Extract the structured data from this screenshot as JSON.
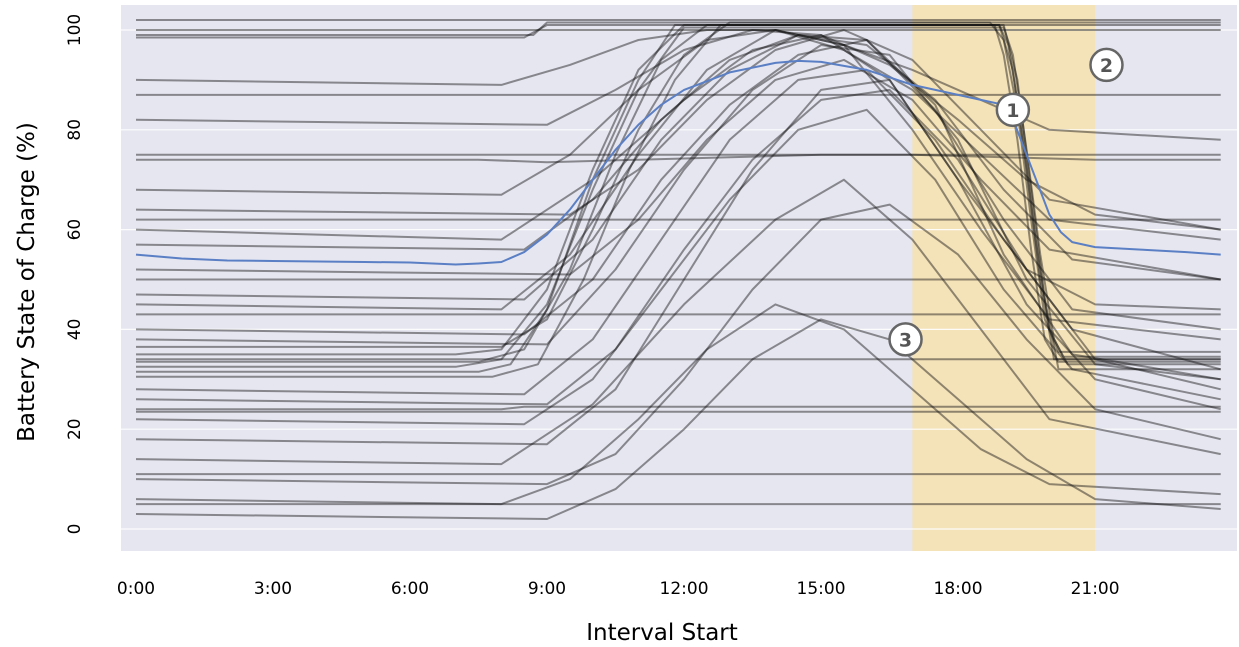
{
  "chart_data": {
    "type": "line",
    "title": "",
    "xlabel": "Interval Start",
    "ylabel": "Battery State of Charge (%)",
    "xlim": [
      0,
      23.75
    ],
    "ylim": [
      -5,
      105
    ],
    "x_ticks": [
      {
        "value": 0,
        "label": "0:00"
      },
      {
        "value": 3,
        "label": "3:00"
      },
      {
        "value": 6,
        "label": "6:00"
      },
      {
        "value": 9,
        "label": "9:00"
      },
      {
        "value": 12,
        "label": "12:00"
      },
      {
        "value": 15,
        "label": "15:00"
      },
      {
        "value": 18,
        "label": "18:00"
      },
      {
        "value": 21,
        "label": "21:00"
      }
    ],
    "y_ticks": [
      {
        "value": 0,
        "label": "0"
      },
      {
        "value": 20,
        "label": "20"
      },
      {
        "value": 40,
        "label": "40"
      },
      {
        "value": 60,
        "label": "60"
      },
      {
        "value": 80,
        "label": "80"
      },
      {
        "value": 100,
        "label": "100"
      }
    ],
    "grid": true,
    "colors": {
      "plot_background": "#e5e6f0",
      "grid": "#ffffff",
      "trace": "#111111",
      "mean_line": "#5b7fc4",
      "highlight": "#f4e2b8"
    },
    "highlight_band": {
      "x_start": 17,
      "x_end": 21
    },
    "mean_series": {
      "x": [
        0,
        1,
        2,
        3,
        4,
        5,
        6,
        7,
        7.5,
        8,
        8.5,
        9,
        9.5,
        10,
        10.5,
        11,
        11.5,
        12,
        13,
        14,
        14.5,
        15,
        16,
        17,
        18,
        18.5,
        19,
        19.25,
        19.5,
        19.75,
        20,
        20.25,
        20.5,
        21,
        22,
        23,
        23.75
      ],
      "y": [
        55,
        54.2,
        53.8,
        53.7,
        53.6,
        53.5,
        53.4,
        53.0,
        53.2,
        53.5,
        55.5,
        59,
        64,
        70,
        76,
        81,
        85,
        88,
        91.5,
        93.4,
        93.8,
        93.6,
        92,
        89,
        87,
        86,
        85,
        81,
        75,
        69,
        63,
        59.5,
        57.5,
        56.5,
        56,
        55.5,
        55
      ]
    },
    "traces": [
      {
        "x": [
          0,
          7,
          8,
          9,
          10,
          11,
          12,
          18.9,
          19.1,
          19.4,
          19.7,
          20,
          20.3,
          23.75
        ],
        "y": [
          35,
          35,
          36,
          48,
          72,
          92,
          101,
          101,
          97,
          80,
          58,
          40,
          34.5,
          34.5
        ]
      },
      {
        "x": [
          0,
          7.5,
          8.5,
          9.5,
          10.5,
          11.5,
          12.5,
          18.8,
          19,
          19.3,
          19.6,
          19.9,
          20.2,
          23.75
        ],
        "y": [
          33.5,
          33.5,
          36,
          52,
          75,
          94,
          101,
          101,
          95,
          78,
          56,
          38,
          33.5,
          33.5
        ]
      },
      {
        "x": [
          0,
          7,
          8,
          9,
          10,
          11,
          12,
          19,
          19.2,
          19.5,
          19.8,
          20.1,
          20.4,
          23.75
        ],
        "y": [
          32.5,
          32.5,
          34,
          45,
          68,
          88,
          100.5,
          100.5,
          95,
          76,
          55,
          38,
          33,
          33
        ]
      },
      {
        "x": [
          0,
          7.5,
          8.2,
          9,
          10,
          11,
          11.8,
          18.9,
          19.2,
          19.5,
          19.8,
          20.1,
          23.75
        ],
        "y": [
          31.5,
          31.5,
          33,
          44,
          70,
          90,
          101,
          101,
          92,
          72,
          50,
          34,
          34
        ]
      },
      {
        "x": [
          0,
          8,
          9,
          10,
          11,
          12,
          13,
          18.7,
          19,
          19.3,
          19.6,
          19.9,
          20.2,
          23.75
        ],
        "y": [
          36.5,
          36.5,
          42,
          60,
          80,
          95,
          101.5,
          101.5,
          98,
          84,
          62,
          42,
          35.5,
          35.5
        ]
      },
      {
        "x": [
          0,
          7.8,
          8.8,
          9.8,
          10.8,
          11.8,
          12.8,
          19,
          19.3,
          19.6,
          19.9,
          20.2,
          23.75
        ],
        "y": [
          30.5,
          30.5,
          33,
          50,
          72,
          90,
          101,
          101,
          90,
          68,
          46,
          32,
          32
        ]
      },
      {
        "x": [
          0,
          8.7,
          9,
          23.75
        ],
        "y": [
          99,
          99,
          101.5,
          101.5
        ]
      },
      {
        "x": [
          0,
          8.5,
          9,
          23.75
        ],
        "y": [
          98.5,
          98.5,
          101,
          101
        ]
      },
      {
        "x": [
          0,
          23.75
        ],
        "y": [
          102,
          102
        ]
      },
      {
        "x": [
          0,
          23.75
        ],
        "y": [
          100,
          100
        ]
      },
      {
        "x": [
          0,
          7.5,
          9,
          11,
          13,
          15,
          17,
          19,
          21,
          23.75
        ],
        "y": [
          74,
          74,
          73.5,
          74,
          74.5,
          75,
          75,
          74.5,
          74,
          74
        ]
      },
      {
        "x": [
          0,
          8,
          8.5,
          23.75
        ],
        "y": [
          24,
          24,
          24.5,
          24.5
        ]
      },
      {
        "x": [
          0,
          23.75
        ],
        "y": [
          23.5,
          23.5
        ]
      },
      {
        "x": [
          0,
          23.75
        ],
        "y": [
          34,
          34
        ]
      },
      {
        "x": [
          0,
          23.75
        ],
        "y": [
          75,
          75
        ]
      },
      {
        "x": [
          0,
          23.75
        ],
        "y": [
          50,
          50
        ]
      },
      {
        "x": [
          0,
          23.75
        ],
        "y": [
          62,
          62
        ]
      },
      {
        "x": [
          0,
          23.75
        ],
        "y": [
          87,
          87
        ]
      },
      {
        "x": [
          0,
          23.75
        ],
        "y": [
          43,
          43
        ]
      },
      {
        "x": [
          0,
          23.75
        ],
        "y": [
          11,
          11
        ]
      },
      {
        "x": [
          0,
          23.75
        ],
        "y": [
          5,
          5
        ]
      },
      {
        "x": [
          0,
          8,
          10,
          12,
          13.5,
          15,
          16.5,
          18,
          19.5,
          21,
          23.75
        ],
        "y": [
          60,
          58,
          70,
          86,
          96,
          99,
          90,
          70,
          52,
          45,
          44
        ]
      },
      {
        "x": [
          0,
          8,
          9.5,
          11,
          12.5,
          14,
          15.5,
          17,
          18.5,
          20,
          23.75
        ],
        "y": [
          45,
          44,
          55,
          75,
          92,
          100,
          97,
          80,
          60,
          42,
          38
        ]
      },
      {
        "x": [
          0,
          9,
          10.5,
          12,
          13.5,
          15,
          16.5,
          18,
          19.5,
          21,
          23.75
        ],
        "y": [
          18,
          17,
          28,
          50,
          72,
          88,
          90,
          70,
          45,
          30,
          24
        ]
      },
      {
        "x": [
          0,
          8.5,
          10,
          11.5,
          13,
          14.5,
          16,
          17.5,
          19,
          20.5,
          23.75
        ],
        "y": [
          40,
          39,
          50,
          70,
          85,
          95,
          98,
          85,
          55,
          35,
          30
        ]
      },
      {
        "x": [
          0,
          9,
          10.5,
          12,
          13.5,
          15,
          16.5,
          18,
          19.5,
          21,
          23.75
        ],
        "y": [
          10,
          9,
          15,
          30,
          48,
          62,
          65,
          55,
          38,
          24,
          18
        ]
      },
      {
        "x": [
          0,
          8,
          9.5,
          11,
          12.5,
          14,
          15.5,
          17,
          18.5,
          20,
          23.75
        ],
        "y": [
          68,
          67,
          75,
          88,
          98,
          100,
          96,
          88,
          75,
          62,
          58
        ]
      },
      {
        "x": [
          0,
          8.5,
          10,
          11.5,
          13,
          14.5,
          16,
          17.5,
          19,
          20.5,
          23.75
        ],
        "y": [
          28,
          27,
          38,
          58,
          78,
          90,
          92,
          78,
          58,
          40,
          32
        ]
      },
      {
        "x": [
          0,
          9.5,
          11,
          12.5,
          14,
          15.5,
          17,
          18.5,
          20,
          23.75
        ],
        "y": [
          52,
          51,
          62,
          78,
          90,
          94,
          86,
          70,
          56,
          50
        ]
      },
      {
        "x": [
          0,
          8,
          9.5,
          11,
          12.5,
          14,
          15.5,
          17,
          18.5,
          20,
          23.75
        ],
        "y": [
          6,
          5,
          10,
          22,
          36,
          45,
          40,
          28,
          16,
          9,
          7
        ]
      },
      {
        "x": [
          0,
          9,
          10.5,
          12,
          13.5,
          15,
          16.5,
          18,
          19.5,
          21,
          23.75
        ],
        "y": [
          82,
          81,
          88,
          96,
          100,
          99,
          93,
          82,
          70,
          63,
          60
        ]
      },
      {
        "x": [
          0,
          8.5,
          10,
          11.5,
          13,
          14.5,
          16,
          17.5,
          19,
          20.5,
          23.75
        ],
        "y": [
          22,
          21,
          30,
          48,
          66,
          80,
          84,
          70,
          48,
          32,
          26
        ]
      },
      {
        "x": [
          0,
          9,
          10.5,
          12,
          13.5,
          15,
          16.5,
          18,
          19.5,
          21,
          23.75
        ],
        "y": [
          38,
          37,
          52,
          72,
          88,
          97,
          95,
          78,
          50,
          33,
          30
        ]
      },
      {
        "x": [
          0,
          8,
          10,
          12,
          14,
          15.5,
          17,
          18.5,
          20,
          23.75
        ],
        "y": [
          14,
          13,
          25,
          45,
          62,
          70,
          58,
          40,
          22,
          15
        ]
      },
      {
        "x": [
          0,
          9.5,
          11,
          12.5,
          14,
          15.5,
          17,
          18.5,
          20,
          23.75
        ],
        "y": [
          64,
          63,
          72,
          86,
          96,
          100,
          94,
          80,
          66,
          60
        ]
      },
      {
        "x": [
          0,
          8.5,
          10,
          11.5,
          13,
          14.5,
          16,
          17.5,
          19,
          20.5,
          23.75
        ],
        "y": [
          47,
          46,
          58,
          78,
          92,
          99,
          98,
          84,
          62,
          44,
          40
        ]
      },
      {
        "x": [
          0,
          9,
          10.5,
          12,
          13.5,
          15,
          16.5,
          18,
          19.5,
          21,
          23.75
        ],
        "y": [
          3,
          2,
          8,
          20,
          34,
          42,
          38,
          26,
          14,
          6,
          4
        ]
      },
      {
        "x": [
          0,
          8,
          9.5,
          11,
          12.5,
          14,
          15.5,
          17,
          18.5,
          20,
          23.75
        ],
        "y": [
          90,
          89,
          93,
          98,
          100,
          100,
          97,
          92,
          86,
          80,
          78
        ]
      },
      {
        "x": [
          0,
          9,
          10.5,
          12,
          13.5,
          15,
          16.5,
          18,
          19.5,
          21,
          23.75
        ],
        "y": [
          26,
          25,
          36,
          56,
          74,
          86,
          88,
          74,
          52,
          34,
          28
        ]
      },
      {
        "x": [
          0,
          8.5,
          10,
          11.5,
          13,
          14.5,
          16,
          17.5,
          19,
          20.5,
          23.75
        ],
        "y": [
          57,
          56,
          66,
          82,
          94,
          99,
          97,
          86,
          68,
          54,
          50
        ]
      }
    ],
    "annotations": [
      {
        "label": "1",
        "x": 19.2,
        "y": 84
      },
      {
        "label": "2",
        "x": 21.25,
        "y": 93
      },
      {
        "label": "3",
        "x": 16.85,
        "y": 38
      }
    ]
  }
}
